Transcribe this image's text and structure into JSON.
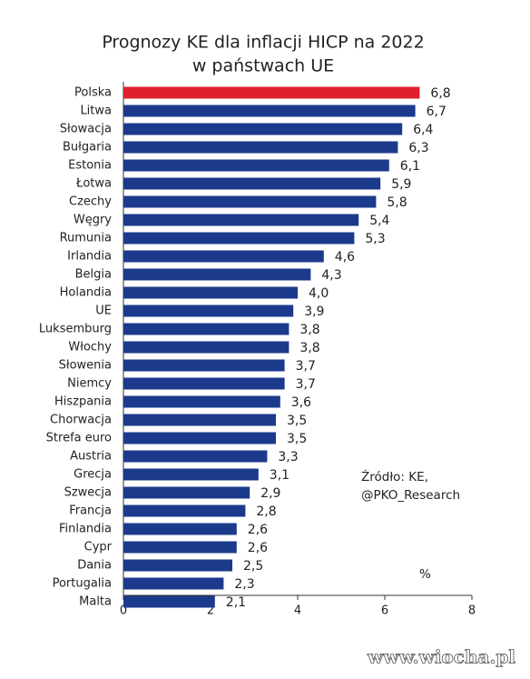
{
  "chart_data": {
    "type": "barh",
    "title": [
      "Prognozy KE dla inflacji HICP na 2022",
      "w państwach UE"
    ],
    "categories": [
      "Polska",
      "Litwa",
      "Słowacja",
      "Bułgaria",
      "Estonia",
      "Łotwa",
      "Czechy",
      "Węgry",
      "Rumunia",
      "Irlandia",
      "Belgia",
      "Holandia",
      "UE",
      "Luksemburg",
      "Włochy",
      "Słowenia",
      "Niemcy",
      "Hiszpania",
      "Chorwacja",
      "Strefa euro",
      "Austria",
      "Grecja",
      "Szwecja",
      "Francja",
      "Finlandia",
      "Cypr",
      "Dania",
      "Portugalia",
      "Malta"
    ],
    "values": [
      6.8,
      6.7,
      6.4,
      6.3,
      6.1,
      5.9,
      5.8,
      5.4,
      5.3,
      4.6,
      4.3,
      4.0,
      3.9,
      3.8,
      3.8,
      3.7,
      3.7,
      3.6,
      3.5,
      3.5,
      3.3,
      3.1,
      2.9,
      2.8,
      2.6,
      2.6,
      2.5,
      2.3,
      2.1
    ],
    "value_labels": [
      "6,8",
      "6,7",
      "6,4",
      "6,3",
      "6,1",
      "5,9",
      "5,8",
      "5,4",
      "5,3",
      "4,6",
      "4,3",
      "4,0",
      "3,9",
      "3,8",
      "3,8",
      "3,7",
      "3,7",
      "3,6",
      "3,5",
      "3,5",
      "3,3",
      "3,1",
      "2,9",
      "2,8",
      "2,6",
      "2,6",
      "2,5",
      "2,3",
      "2,1"
    ],
    "colors": [
      "#e0202e",
      "#1b3a8c",
      "#1b3a8c",
      "#1b3a8c",
      "#1b3a8c",
      "#1b3a8c",
      "#1b3a8c",
      "#1b3a8c",
      "#1b3a8c",
      "#1b3a8c",
      "#1b3a8c",
      "#1b3a8c",
      "#1b3a8c",
      "#1b3a8c",
      "#1b3a8c",
      "#1b3a8c",
      "#1b3a8c",
      "#1b3a8c",
      "#1b3a8c",
      "#1b3a8c",
      "#1b3a8c",
      "#1b3a8c",
      "#1b3a8c",
      "#1b3a8c",
      "#1b3a8c",
      "#1b3a8c",
      "#1b3a8c",
      "#1b3a8c",
      "#1b3a8c"
    ],
    "xlim": [
      0,
      8
    ],
    "xticks": [
      0,
      2,
      4,
      6,
      8
    ],
    "annotation": [
      "Źródło: KE,",
      "@PKO_Research"
    ],
    "unit": "%",
    "watermark": "www.wiocha.pl"
  }
}
